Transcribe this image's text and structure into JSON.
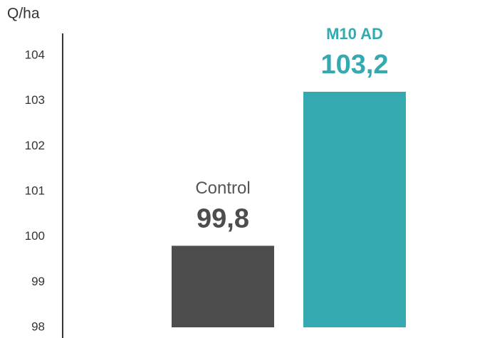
{
  "chart_data": {
    "type": "bar",
    "y_axis_label": "Q/ha",
    "categories": [
      "Control",
      "M10 AD"
    ],
    "values": [
      99.8,
      103.2
    ],
    "value_labels": [
      "99,8",
      "103,2"
    ],
    "colors": [
      "#4d4d4d",
      "#35a9b0"
    ],
    "ylim": [
      98,
      104.5
    ],
    "yticks": [
      98,
      99,
      100,
      101,
      102,
      103,
      104
    ],
    "grid": false
  }
}
